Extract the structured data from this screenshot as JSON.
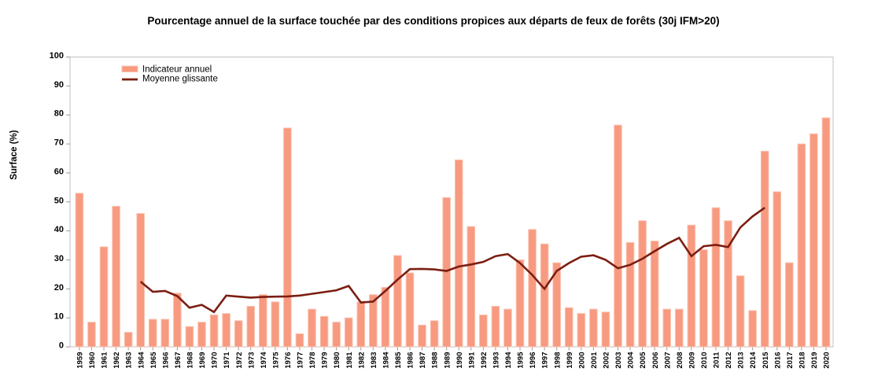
{
  "chart_data": {
    "type": "bar+line",
    "title": "Pourcentage annuel de la surface touchée par des conditions propices aux départs de feux de forêts (30j IFM>20)",
    "ylabel": "Surface (%)",
    "ylim": [
      0,
      100
    ],
    "yticks": [
      0,
      10,
      20,
      30,
      40,
      50,
      60,
      70,
      80,
      90,
      100
    ],
    "grid": false,
    "legend_position": "top-left-inside",
    "categories": [
      "1959",
      "1960",
      "1961",
      "1962",
      "1963",
      "1964",
      "1965",
      "1966",
      "1967",
      "1968",
      "1969",
      "1970",
      "1971",
      "1972",
      "1973",
      "1974",
      "1975",
      "1976",
      "1977",
      "1978",
      "1979",
      "1980",
      "1981",
      "1982",
      "1983",
      "1984",
      "1985",
      "1986",
      "1987",
      "1988",
      "1989",
      "1990",
      "1991",
      "1992",
      "1993",
      "1994",
      "1995",
      "1996",
      "1997",
      "1998",
      "1999",
      "2000",
      "2001",
      "2002",
      "2003",
      "2004",
      "2005",
      "2006",
      "2007",
      "2008",
      "2009",
      "2010",
      "2011",
      "2012",
      "2013",
      "2014",
      "2015",
      "2016",
      "2017",
      "2018",
      "2019",
      "2020"
    ],
    "series": [
      {
        "name": "Indicateur annuel",
        "type": "bar",
        "color": "#F79A80",
        "edge_color": "#FBC3B0",
        "values": [
          53,
          8.5,
          34.5,
          48.5,
          5,
          46,
          9.5,
          9.5,
          18.5,
          7,
          8.5,
          11,
          11.5,
          9,
          14,
          18,
          15.5,
          75.5,
          4.5,
          13,
          10.5,
          8.5,
          10,
          15.5,
          18,
          20.5,
          31.5,
          25.5,
          7.5,
          9,
          51.5,
          64.5,
          41.5,
          11,
          14,
          13,
          30,
          40.5,
          35.5,
          29,
          13.5,
          11.5,
          13,
          12,
          76.5,
          36,
          43.5,
          36.5,
          13,
          13,
          42,
          33.5,
          48,
          43.5,
          24.5,
          12.5,
          67.5,
          53.5,
          29,
          70,
          73.5,
          79
        ]
      },
      {
        "name": "Moyenne glissante",
        "type": "line",
        "color": "#7C1E12",
        "start_year": 1964,
        "end_year": 2015,
        "values": [
          22.5,
          19,
          19.3,
          17.5,
          13.5,
          14.5,
          12,
          17.7,
          17.3,
          17,
          17.2,
          17.3,
          17.4,
          17.7,
          18.3,
          18.9,
          19.5,
          21,
          15.3,
          15.6,
          19.3,
          23.2,
          26.8,
          26.9,
          26.7,
          26.2,
          27.7,
          28.4,
          29.3,
          31.3,
          32,
          28.9,
          24.8,
          20,
          26.2,
          28.9,
          31.1,
          31.6,
          30,
          27.1,
          28.3,
          30.4,
          33,
          35.5,
          37.6,
          31.3,
          34.7,
          35.2,
          34.4,
          41.2,
          45,
          48
        ]
      }
    ],
    "colors": {
      "frame": "#C2C2C2",
      "tick": "#9A9A9A",
      "background": "#FFFFFF"
    }
  }
}
